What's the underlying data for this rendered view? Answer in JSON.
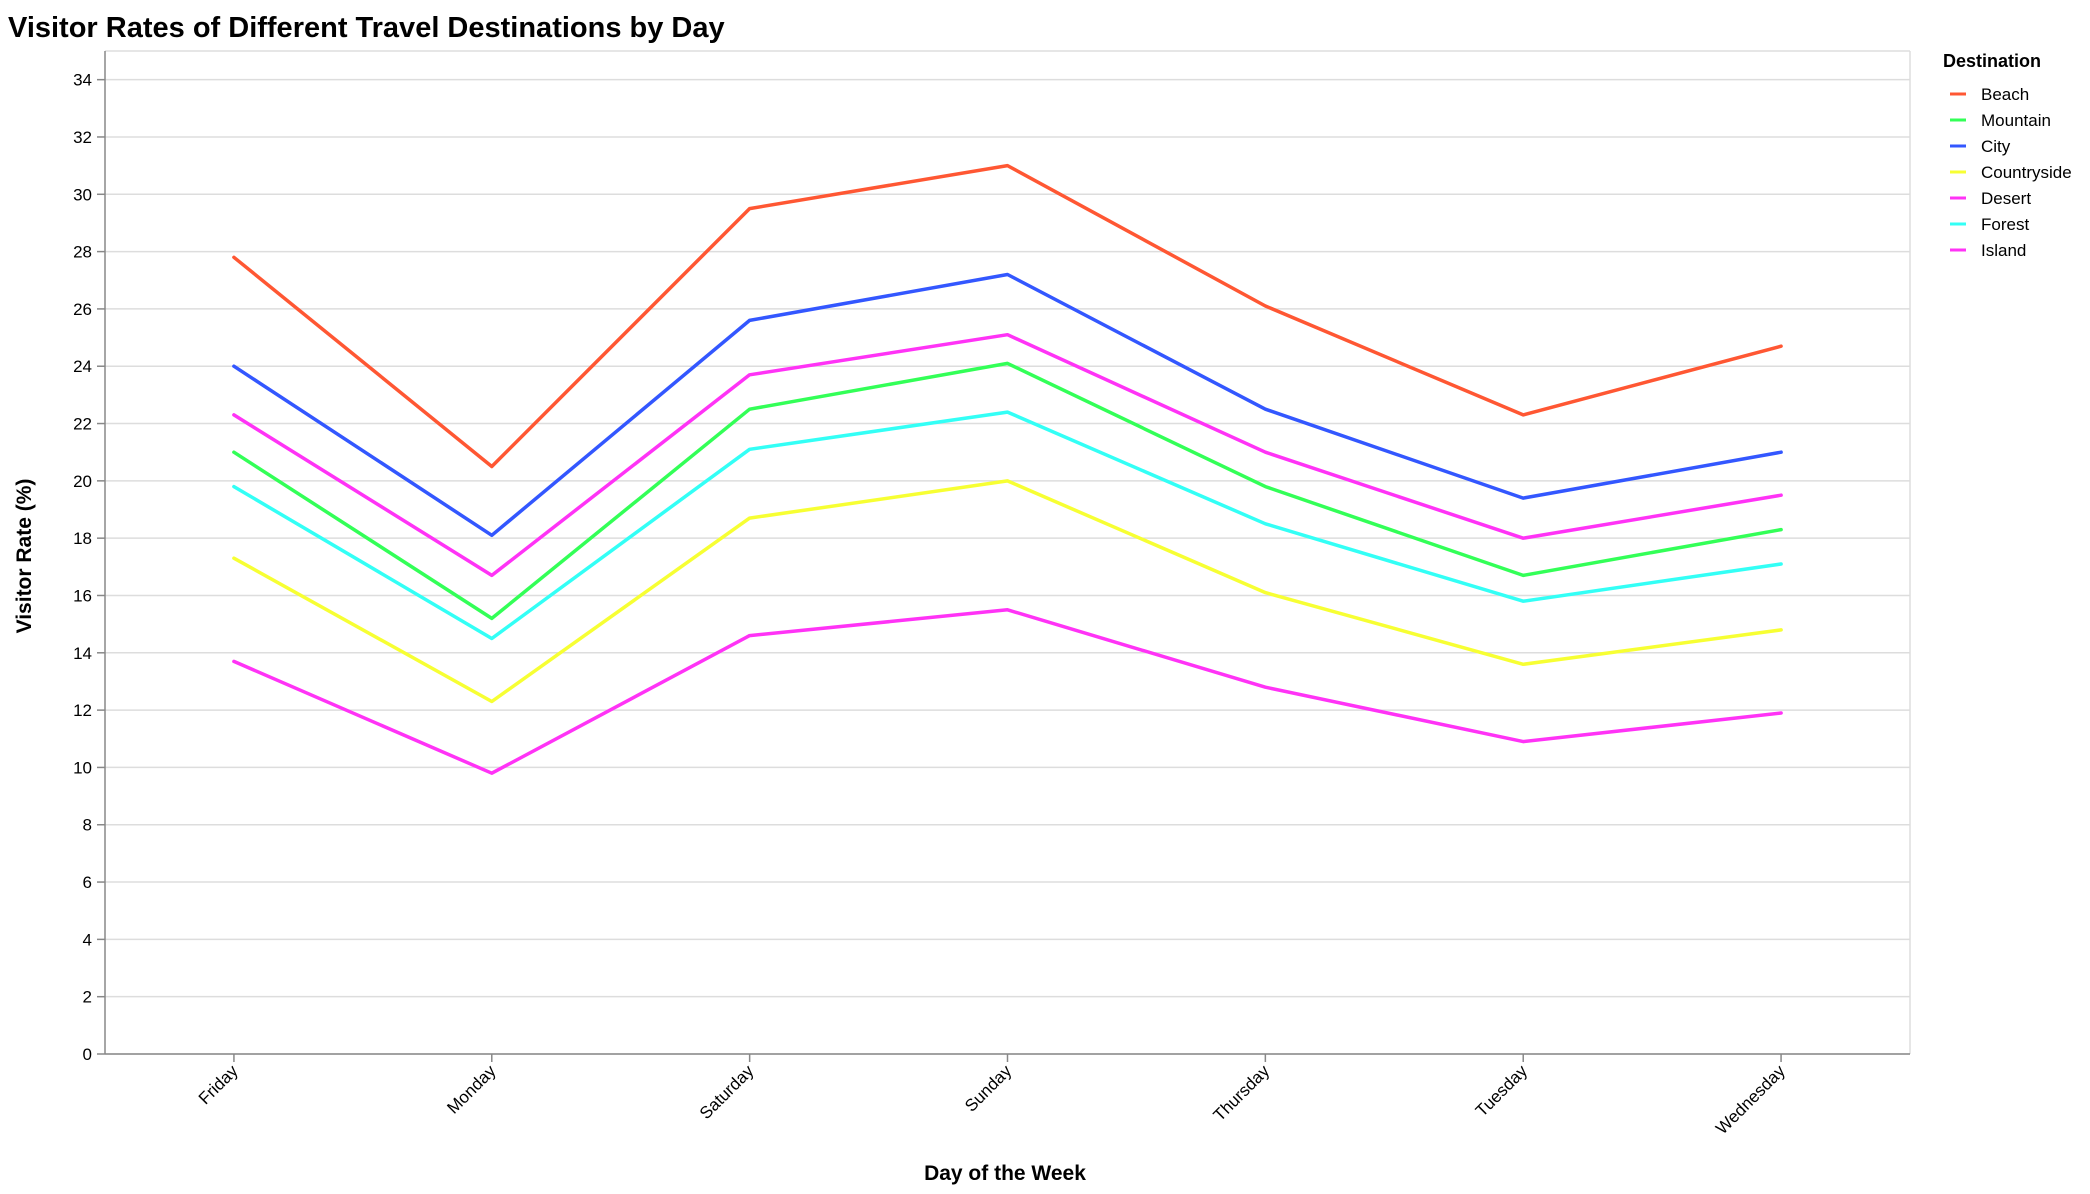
{
  "chart_data": {
    "type": "line",
    "title": "Visitor Rates of Different Travel Destinations by Day",
    "xlabel": "Day of the Week",
    "ylabel": "Visitor Rate (%)",
    "ylim": [
      0,
      35
    ],
    "yticks": [
      0,
      2,
      4,
      6,
      8,
      10,
      12,
      14,
      16,
      18,
      20,
      22,
      24,
      26,
      28,
      30,
      32,
      34
    ],
    "grid": true,
    "legend_title": "Destination",
    "legend_position": "top-right",
    "categories": [
      "Friday",
      "Monday",
      "Saturday",
      "Sunday",
      "Thursday",
      "Tuesday",
      "Wednesday"
    ],
    "series": [
      {
        "name": "Beach",
        "color": "#ff5733",
        "values": [
          27.8,
          20.5,
          29.5,
          31.0,
          26.1,
          22.3,
          24.7
        ]
      },
      {
        "name": "Mountain",
        "color": "#33ff57",
        "values": [
          21.0,
          15.2,
          22.5,
          24.1,
          19.8,
          16.7,
          18.3
        ]
      },
      {
        "name": "City",
        "color": "#3357ff",
        "values": [
          24.0,
          18.1,
          25.6,
          27.2,
          22.5,
          19.4,
          21.0
        ]
      },
      {
        "name": "Countryside",
        "color": "#f7ff33",
        "values": [
          17.3,
          12.3,
          18.7,
          20.0,
          16.1,
          13.6,
          14.8
        ]
      },
      {
        "name": "Desert",
        "color": "#ff33f6",
        "values": [
          22.3,
          16.7,
          23.7,
          25.1,
          21.0,
          18.0,
          19.5
        ]
      },
      {
        "name": "Forest",
        "color": "#33fff6",
        "values": [
          19.8,
          14.5,
          21.1,
          22.4,
          18.5,
          15.8,
          17.1
        ]
      },
      {
        "name": "Island",
        "color": "#ff33f6",
        "values": [
          13.7,
          9.8,
          14.6,
          15.5,
          12.8,
          10.9,
          11.9
        ]
      }
    ]
  }
}
